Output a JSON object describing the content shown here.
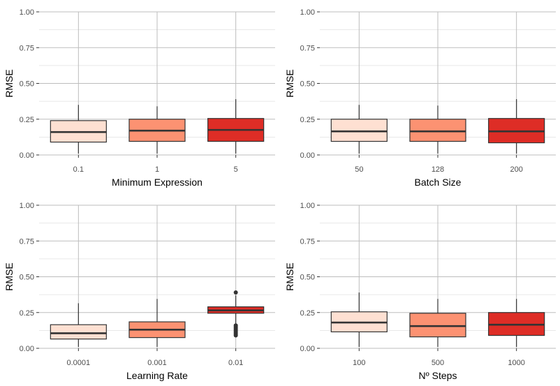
{
  "chart_data": [
    {
      "type": "boxplot",
      "xlabel": "Minimum Expression",
      "ylabel": "RMSE",
      "ylim": [
        0,
        1
      ],
      "y_ticks": [
        "0.00",
        "0.25",
        "0.50",
        "0.75",
        "1.00"
      ],
      "y_tick_values": [
        0,
        0.25,
        0.5,
        0.75,
        1
      ],
      "grid": true,
      "categories": [
        "0.1",
        "1",
        "5"
      ],
      "fill_colors": [
        "#fee0d2",
        "#fc9272",
        "#de2d26"
      ],
      "boxes": [
        {
          "whisker_low": 0.01,
          "q1": 0.09,
          "median": 0.16,
          "q3": 0.24,
          "whisker_high": 0.35,
          "outliers": []
        },
        {
          "whisker_low": 0.01,
          "q1": 0.095,
          "median": 0.17,
          "q3": 0.25,
          "whisker_high": 0.34,
          "outliers": []
        },
        {
          "whisker_low": 0.01,
          "q1": 0.095,
          "median": 0.175,
          "q3": 0.255,
          "whisker_high": 0.39,
          "outliers": []
        }
      ]
    },
    {
      "type": "boxplot",
      "xlabel": "Batch Size",
      "ylabel": "RMSE",
      "ylim": [
        0,
        1
      ],
      "y_ticks": [
        "0.00",
        "0.25",
        "0.50",
        "0.75",
        "1.00"
      ],
      "y_tick_values": [
        0,
        0.25,
        0.5,
        0.75,
        1
      ],
      "grid": true,
      "categories": [
        "50",
        "128",
        "200"
      ],
      "fill_colors": [
        "#fee0d2",
        "#fc9272",
        "#de2d26"
      ],
      "boxes": [
        {
          "whisker_low": 0.01,
          "q1": 0.095,
          "median": 0.165,
          "q3": 0.25,
          "whisker_high": 0.35,
          "outliers": []
        },
        {
          "whisker_low": 0.01,
          "q1": 0.095,
          "median": 0.165,
          "q3": 0.25,
          "whisker_high": 0.345,
          "outliers": []
        },
        {
          "whisker_low": 0.01,
          "q1": 0.085,
          "median": 0.165,
          "q3": 0.255,
          "whisker_high": 0.39,
          "outliers": []
        }
      ]
    },
    {
      "type": "boxplot",
      "xlabel": "Learning Rate",
      "ylabel": "RMSE",
      "ylim": [
        0,
        1
      ],
      "y_ticks": [
        "0.00",
        "0.25",
        "0.50",
        "0.75",
        "1.00"
      ],
      "y_tick_values": [
        0,
        0.25,
        0.5,
        0.75,
        1
      ],
      "grid": true,
      "categories": [
        "0.0001",
        "0.001",
        "0.01"
      ],
      "fill_colors": [
        "#fee0d2",
        "#fc9272",
        "#de2d26"
      ],
      "boxes": [
        {
          "whisker_low": 0.01,
          "q1": 0.065,
          "median": 0.105,
          "q3": 0.165,
          "whisker_high": 0.315,
          "outliers": []
        },
        {
          "whisker_low": 0.01,
          "q1": 0.075,
          "median": 0.13,
          "q3": 0.185,
          "whisker_high": 0.345,
          "outliers": []
        },
        {
          "whisker_low": 0.165,
          "q1": 0.245,
          "median": 0.265,
          "q3": 0.29,
          "whisker_high": 0.37,
          "outliers": [
            0.09,
            0.1,
            0.11,
            0.12,
            0.13,
            0.14,
            0.15,
            0.16,
            0.39
          ]
        }
      ]
    },
    {
      "type": "boxplot",
      "xlabel": "Nº Steps",
      "ylabel": "RMSE",
      "ylim": [
        0,
        1
      ],
      "y_ticks": [
        "0.00",
        "0.25",
        "0.50",
        "0.75",
        "1.00"
      ],
      "y_tick_values": [
        0,
        0.25,
        0.5,
        0.75,
        1
      ],
      "grid": true,
      "categories": [
        "100",
        "500",
        "1000"
      ],
      "fill_colors": [
        "#fee0d2",
        "#fc9272",
        "#de2d26"
      ],
      "boxes": [
        {
          "whisker_low": 0.01,
          "q1": 0.115,
          "median": 0.18,
          "q3": 0.255,
          "whisker_high": 0.39,
          "outliers": []
        },
        {
          "whisker_low": 0.01,
          "q1": 0.08,
          "median": 0.155,
          "q3": 0.245,
          "whisker_high": 0.345,
          "outliers": []
        },
        {
          "whisker_low": 0.01,
          "q1": 0.09,
          "median": 0.165,
          "q3": 0.25,
          "whisker_high": 0.345,
          "outliers": []
        }
      ]
    }
  ]
}
